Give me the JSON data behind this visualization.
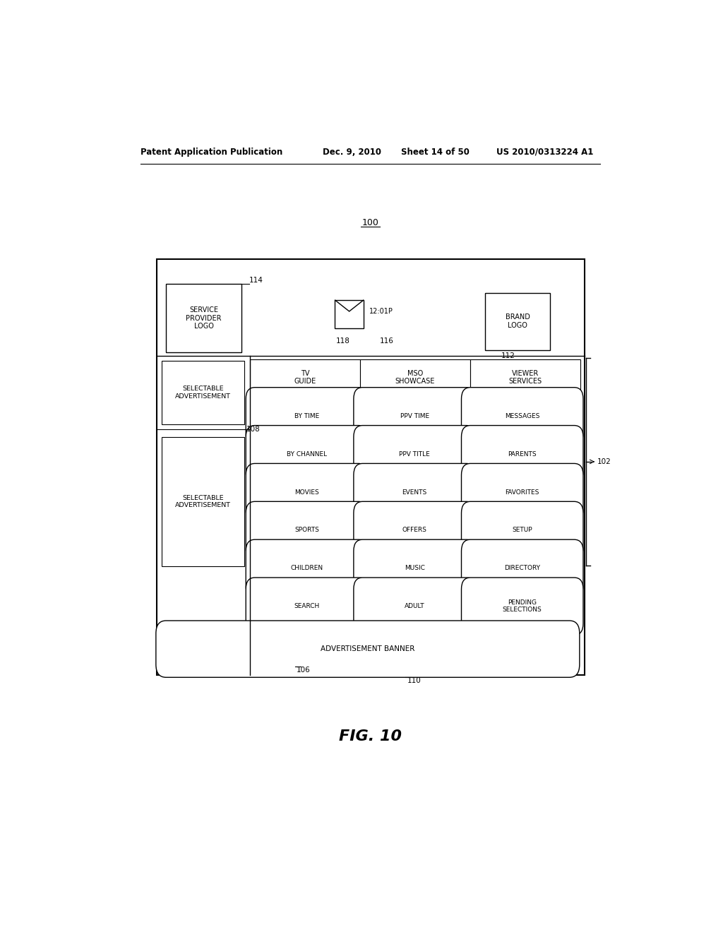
{
  "bg_color": "#ffffff",
  "header_text": "Patent Application Publication",
  "header_date": "Dec. 9, 2010",
  "header_sheet": "Sheet 14 of 50",
  "header_patent": "US 2010/0313224 A1",
  "fig_label": "FIG. 10",
  "label_100": "100",
  "label_102": "102",
  "label_106": "106",
  "label_108": "108",
  "label_110": "110",
  "label_112": "112",
  "label_114": "114",
  "label_116": "116",
  "label_118": "118",
  "pill_rows": [
    [
      "BY TIME",
      "PPV TIME",
      "MESSAGES"
    ],
    [
      "BY CHANNEL",
      "PPV TITLE",
      "PARENTS"
    ],
    [
      "MOVIES",
      "EVENTS",
      "FAVORITES"
    ],
    [
      "SPORTS",
      "OFFERS",
      "SETUP"
    ],
    [
      "CHILDREN",
      "MUSIC",
      "DIRECTORY"
    ],
    [
      "SEARCH",
      "ADULT",
      "PENDING\nSELECTIONS"
    ]
  ],
  "menu_labels": [
    "TV\nGUIDE",
    "MSO\nSHOWCASE",
    "VIEWER\nSERVICES"
  ],
  "ad_banner_text": "ADVERTISEMENT BANNER"
}
